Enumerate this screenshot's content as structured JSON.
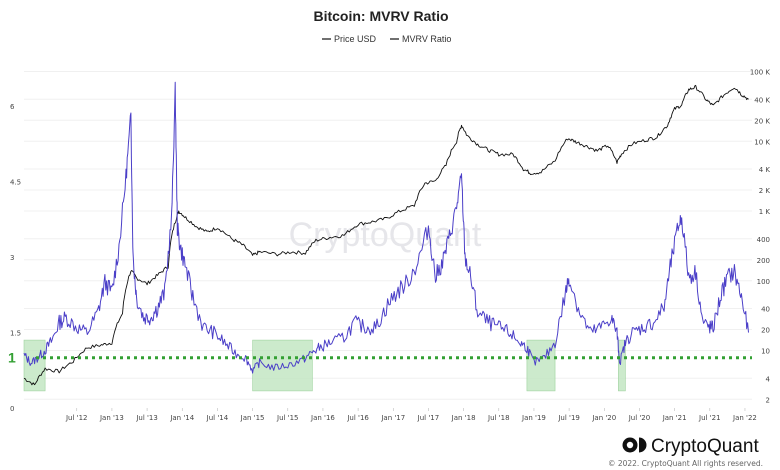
{
  "chart_data": {
    "type": "line",
    "title": "Bitcoin: MVRV Ratio",
    "legend": [
      {
        "name": "Price USD",
        "color": "#111111"
      },
      {
        "name": "MVRV Ratio",
        "color": "#111111"
      }
    ],
    "x_ticks": [
      "Jul '12",
      "Jan '13",
      "Jul '13",
      "Jan '14",
      "Jul '14",
      "Jan '15",
      "Jul '15",
      "Jan '16",
      "Jul '16",
      "Jan '17",
      "Jul '17",
      "Jan '18",
      "Jul '18",
      "Jan '19",
      "Jul '19",
      "Jan '20",
      "Jul '20",
      "Jan '21",
      "Jul '21",
      "Jan '22"
    ],
    "x_range": [
      2011.75,
      2022.1
    ],
    "y_left": {
      "ticks": [
        "6",
        "4.5",
        "3",
        "1.5",
        "0"
      ],
      "range": [
        0,
        6.8
      ]
    },
    "y_right": {
      "ticks": [
        "100 K",
        "40 K",
        "20 K",
        "10 K",
        "4 K",
        "2 K",
        "1 K",
        "400",
        "200",
        "100",
        "40",
        "20",
        "10",
        "4",
        "2"
      ],
      "scale": "log",
      "range": [
        1.5,
        120000
      ]
    },
    "reference_line": {
      "value": 1,
      "label": "1",
      "color": "#33a033",
      "style": "dotted"
    },
    "undervalued_zones": [
      [
        2011.75,
        2012.05
      ],
      [
        2015.0,
        2015.85
      ],
      [
        2018.9,
        2019.3
      ],
      [
        2020.2,
        2020.3
      ]
    ],
    "series": [
      {
        "name": "MVRV Ratio",
        "color": "#4b3fc8",
        "x": [
          2011.75,
          2011.85,
          2011.95,
          2012.05,
          2012.15,
          2012.25,
          2012.35,
          2012.5,
          2012.65,
          2012.8,
          2012.9,
          2013.0,
          2013.1,
          2013.2,
          2013.27,
          2013.3,
          2013.35,
          2013.45,
          2013.55,
          2013.65,
          2013.75,
          2013.85,
          2013.9,
          2013.93,
          2013.97,
          2014.05,
          2014.15,
          2014.3,
          2014.45,
          2014.6,
          2014.75,
          2014.9,
          2015.0,
          2015.1,
          2015.3,
          2015.5,
          2015.7,
          2015.85,
          2015.95,
          2016.1,
          2016.3,
          2016.45,
          2016.6,
          2016.75,
          2016.9,
          2017.05,
          2017.2,
          2017.35,
          2017.5,
          2017.6,
          2017.7,
          2017.8,
          2017.9,
          2017.97,
          2018.02,
          2018.1,
          2018.2,
          2018.35,
          2018.5,
          2018.65,
          2018.8,
          2018.9,
          2019.0,
          2019.15,
          2019.3,
          2019.45,
          2019.5,
          2019.65,
          2019.8,
          2019.95,
          2020.1,
          2020.18,
          2020.22,
          2020.3,
          2020.4,
          2020.55,
          2020.7,
          2020.85,
          2020.95,
          2021.05,
          2021.1,
          2021.2,
          2021.3,
          2021.4,
          2021.5,
          2021.55,
          2021.65,
          2021.75,
          2021.85,
          2021.95,
          2022.05
        ],
        "values": [
          1.05,
          0.9,
          1.0,
          1.15,
          1.35,
          1.7,
          1.8,
          1.6,
          1.5,
          1.9,
          2.5,
          2.3,
          3.2,
          4.6,
          5.8,
          3.0,
          2.2,
          1.8,
          1.8,
          2.0,
          2.3,
          3.8,
          6.3,
          3.6,
          3.2,
          2.8,
          2.2,
          1.6,
          1.5,
          1.3,
          1.1,
          1.0,
          0.75,
          0.9,
          0.8,
          0.85,
          0.95,
          1.1,
          1.2,
          1.3,
          1.4,
          1.7,
          1.6,
          1.6,
          2.0,
          2.3,
          2.5,
          2.9,
          3.6,
          2.6,
          2.9,
          3.4,
          4.0,
          4.6,
          3.0,
          2.6,
          1.9,
          1.7,
          1.6,
          1.5,
          1.3,
          1.2,
          0.9,
          1.0,
          1.3,
          2.3,
          2.6,
          1.9,
          1.5,
          1.6,
          1.8,
          1.5,
          0.9,
          1.3,
          1.5,
          1.6,
          1.7,
          2.0,
          2.9,
          3.6,
          3.8,
          2.6,
          2.7,
          1.7,
          1.6,
          1.6,
          2.2,
          2.6,
          2.7,
          2.2,
          1.5
        ]
      },
      {
        "name": "Price USD",
        "color": "#111111",
        "x": [
          2011.75,
          2011.9,
          2012.05,
          2012.25,
          2012.45,
          2012.65,
          2012.85,
          2013.0,
          2013.15,
          2013.27,
          2013.35,
          2013.5,
          2013.65,
          2013.8,
          2013.9,
          2013.95,
          2014.05,
          2014.2,
          2014.35,
          2014.5,
          2014.7,
          2014.85,
          2015.0,
          2015.1,
          2015.35,
          2015.55,
          2015.75,
          2015.9,
          2016.1,
          2016.3,
          2016.5,
          2016.7,
          2016.9,
          2017.1,
          2017.3,
          2017.45,
          2017.6,
          2017.75,
          2017.9,
          2017.97,
          2018.05,
          2018.2,
          2018.35,
          2018.5,
          2018.7,
          2018.85,
          2018.95,
          2019.1,
          2019.3,
          2019.48,
          2019.6,
          2019.75,
          2019.9,
          2020.05,
          2020.18,
          2020.25,
          2020.4,
          2020.6,
          2020.75,
          2020.9,
          2021.0,
          2021.1,
          2021.2,
          2021.3,
          2021.45,
          2021.55,
          2021.7,
          2021.85,
          2021.95,
          2022.05
        ],
        "values": [
          4,
          3.2,
          5.5,
          5,
          7,
          11,
          12,
          13,
          34,
          140,
          110,
          90,
          120,
          160,
          700,
          1000,
          800,
          600,
          500,
          580,
          400,
          330,
          230,
          260,
          240,
          260,
          250,
          380,
          420,
          450,
          650,
          700,
          780,
          1000,
          1200,
          2500,
          2700,
          4500,
          10000,
          17000,
          12000,
          9000,
          7500,
          6500,
          6500,
          4000,
          3500,
          3600,
          5200,
          11000,
          9800,
          8500,
          7300,
          8700,
          5000,
          6700,
          9200,
          10500,
          11500,
          17000,
          29000,
          33000,
          55000,
          60000,
          39000,
          32000,
          46000,
          60000,
          47000,
          40000
        ]
      }
    ],
    "watermark": "CryptoQuant",
    "brand": "CryptoQuant",
    "copyright": "© 2022. CryptoQuant All rights reserved."
  }
}
